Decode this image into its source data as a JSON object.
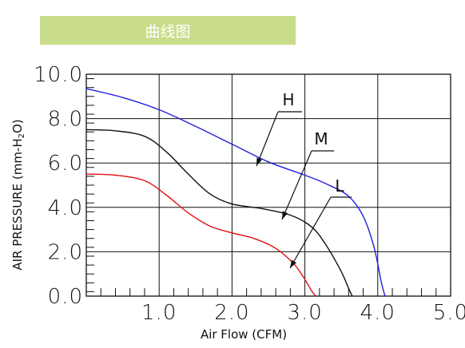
{
  "banner": {
    "title": "曲线图",
    "color": "#c9dc8a"
  },
  "chart_data": {
    "type": "line",
    "xlabel": "Air Flow (CFM)",
    "ylabel": "AIR PRESSURE (mm-H₂O)",
    "xlim": [
      0,
      5.0
    ],
    "ylim": [
      0,
      10.0
    ],
    "x_ticks": [
      "1.0",
      "2.0",
      "3.0",
      "4.0",
      "5.0"
    ],
    "y_ticks": [
      "0.0",
      "2.0",
      "4.0",
      "6.0",
      "8.0",
      "10.0"
    ],
    "grid": true,
    "series": [
      {
        "name": "H",
        "color": "#1f1fe0",
        "points": [
          [
            0,
            9.35
          ],
          [
            0.5,
            8.95
          ],
          [
            1.0,
            8.4
          ],
          [
            1.5,
            7.65
          ],
          [
            2.0,
            6.85
          ],
          [
            2.5,
            6.05
          ],
          [
            3.0,
            5.45
          ],
          [
            3.3,
            5.05
          ],
          [
            3.6,
            4.5
          ],
          [
            3.8,
            3.6
          ],
          [
            3.95,
            2.2
          ],
          [
            4.05,
            0.6
          ],
          [
            4.1,
            0.0
          ]
        ]
      },
      {
        "name": "M",
        "color": "#111111",
        "points": [
          [
            0,
            7.5
          ],
          [
            0.4,
            7.45
          ],
          [
            0.8,
            7.2
          ],
          [
            1.1,
            6.5
          ],
          [
            1.4,
            5.5
          ],
          [
            1.7,
            4.6
          ],
          [
            2.0,
            4.15
          ],
          [
            2.4,
            3.95
          ],
          [
            2.8,
            3.65
          ],
          [
            3.1,
            3.1
          ],
          [
            3.3,
            2.25
          ],
          [
            3.5,
            1.1
          ],
          [
            3.6,
            0.35
          ],
          [
            3.65,
            0.0
          ]
        ]
      },
      {
        "name": "L",
        "color": "#e01010",
        "points": [
          [
            0,
            5.5
          ],
          [
            0.4,
            5.45
          ],
          [
            0.8,
            5.2
          ],
          [
            1.1,
            4.55
          ],
          [
            1.4,
            3.75
          ],
          [
            1.7,
            3.15
          ],
          [
            2.0,
            2.85
          ],
          [
            2.3,
            2.6
          ],
          [
            2.6,
            2.15
          ],
          [
            2.85,
            1.45
          ],
          [
            3.0,
            0.75
          ],
          [
            3.1,
            0.2
          ],
          [
            3.15,
            0.0
          ]
        ]
      }
    ],
    "annotations": [
      "H",
      "M",
      "L"
    ]
  }
}
